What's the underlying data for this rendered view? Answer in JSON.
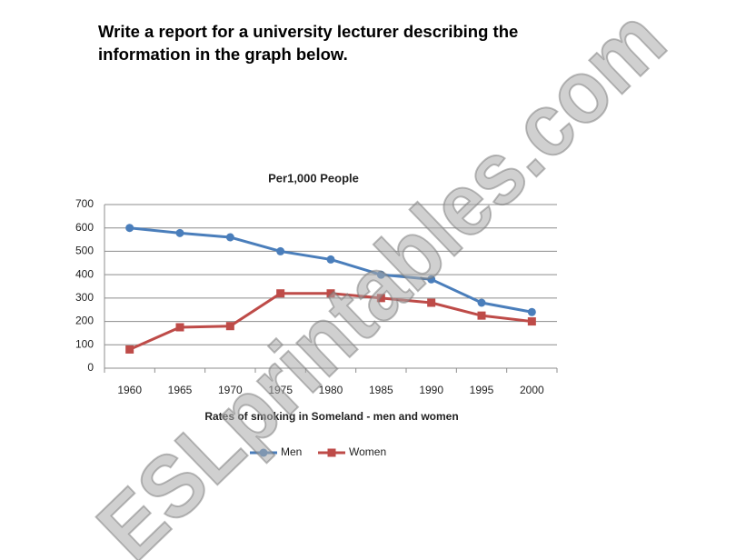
{
  "instruction": "Write a report for a university lecturer describing the information in the graph below.",
  "watermark": "ESLprintables.com",
  "chart_data": {
    "type": "line",
    "title": "Per1,000 People",
    "x_label": "Rates of smoking in Someland - men and women",
    "categories": [
      "1960",
      "1965",
      "1970",
      "1975",
      "1980",
      "1985",
      "1990",
      "1995",
      "2000"
    ],
    "series": [
      {
        "name": "Men",
        "color": "#4a7ebb",
        "marker": "circle",
        "values": [
          600,
          578,
          560,
          500,
          465,
          400,
          380,
          280,
          240
        ]
      },
      {
        "name": "Women",
        "color": "#be4b48",
        "marker": "square",
        "values": [
          80,
          175,
          180,
          320,
          320,
          300,
          280,
          225,
          200
        ]
      }
    ],
    "ylim": [
      0,
      700
    ],
    "yticks": [
      0,
      100,
      200,
      300,
      400,
      500,
      600,
      700
    ],
    "grid": true,
    "legend": "bottom"
  }
}
